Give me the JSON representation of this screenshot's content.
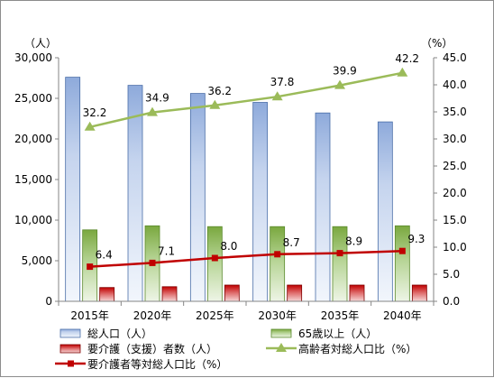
{
  "chart_data": {
    "type": "bar",
    "categories": [
      "2015年",
      "2020年",
      "2025年",
      "2030年",
      "2035年",
      "2040年"
    ],
    "y_left": {
      "unit_label": "（人）",
      "range": [
        0,
        30000
      ],
      "tick_labels": [
        "0",
        "5,000",
        "10,000",
        "15,000",
        "20,000",
        "25,000",
        "30,000"
      ]
    },
    "y_right": {
      "unit_label": "（%）",
      "range": [
        0,
        45
      ],
      "tick_labels": [
        "0.0",
        "5.0",
        "10.0",
        "15.0",
        "20.0",
        "25.0",
        "30.0",
        "35.0",
        "40.0",
        "45.0"
      ]
    },
    "grid": false,
    "legend_position": "bottom",
    "series": [
      {
        "name": "総人口（人）",
        "type": "bar",
        "axis": "left",
        "color": "#4472c4",
        "values": [
          27600,
          26600,
          25600,
          24500,
          23200,
          22100
        ]
      },
      {
        "name": "65歳以上（人）",
        "type": "bar",
        "axis": "left",
        "color": "#70ad47",
        "values": [
          8800,
          9300,
          9200,
          9200,
          9200,
          9300
        ]
      },
      {
        "name": "要介護（支援）者数（人）",
        "type": "bar",
        "axis": "left",
        "color": "#c00000",
        "values": [
          1700,
          1800,
          2000,
          2000,
          2000,
          2000
        ]
      },
      {
        "name": "高齢者対総人口比（%）",
        "type": "line",
        "axis": "right",
        "color": "#9bbb59",
        "values": [
          32.2,
          34.9,
          36.2,
          37.8,
          39.9,
          42.2
        ],
        "labels": [
          "32.2",
          "34.9",
          "36.2",
          "37.8",
          "39.9",
          "42.2"
        ]
      },
      {
        "name": "要介護者等対総人口比（%）",
        "type": "line",
        "axis": "right",
        "color": "#c00000",
        "values": [
          6.4,
          7.1,
          8.0,
          8.7,
          8.9,
          9.3
        ],
        "labels": [
          "6.4",
          "7.1",
          "8.0",
          "8.7",
          "8.9",
          "9.3"
        ]
      }
    ]
  }
}
